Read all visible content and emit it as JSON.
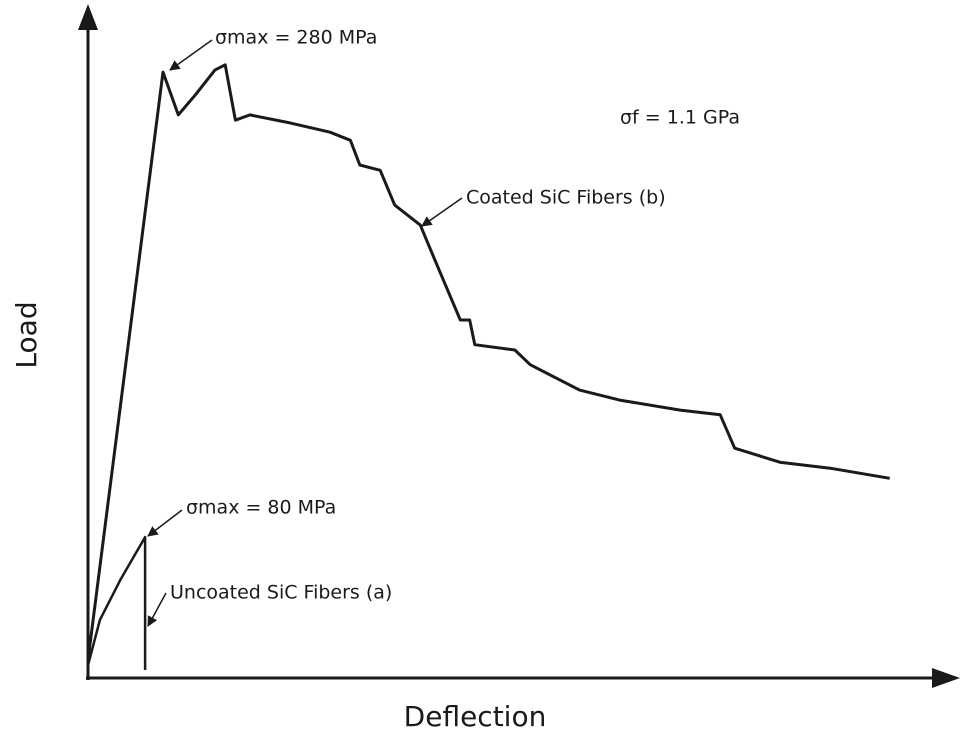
{
  "chart_data": {
    "type": "line",
    "xlabel": "Deflection",
    "ylabel": "Load",
    "xlim": [
      0,
      100
    ],
    "ylim": [
      0,
      100
    ],
    "series": [
      {
        "name": "Coated SiC Fibers (b)",
        "color": "#1a1a1a",
        "x": [
          0,
          8.8,
          10.6,
          12.6,
          14.9,
          16.1,
          17.3,
          19.0,
          23.7,
          28.4,
          30.8,
          31.9,
          34.3,
          36.0,
          39.0,
          40.7,
          43.7,
          44.8,
          45.4,
          50.1,
          51.9,
          57.7,
          62.4,
          69.5,
          74.2,
          75.9,
          81.2,
          87.1,
          94.1
        ],
        "values": [
          2.7,
          90.7,
          84.3,
          87.3,
          91.0,
          91.8,
          83.5,
          84.3,
          83.1,
          81.7,
          80.5,
          76.8,
          76.0,
          70.8,
          67.8,
          62.6,
          53.6,
          53.6,
          49.9,
          49.1,
          46.9,
          43.1,
          41.6,
          40.1,
          39.4,
          34.4,
          32.3,
          31.4,
          29.9
        ]
      },
      {
        "name": "Uncoated SiC Fibers (a)",
        "color": "#1a1a1a",
        "x": [
          0,
          1.4,
          3.8,
          6.7,
          6.7
        ],
        "values": [
          1.9,
          8.7,
          14.7,
          21.1,
          1.2
        ]
      }
    ],
    "annotations": [
      "σmax = 280 MPa",
      "σf = 1.1 GPa",
      "σmax = 80 MPa"
    ]
  }
}
